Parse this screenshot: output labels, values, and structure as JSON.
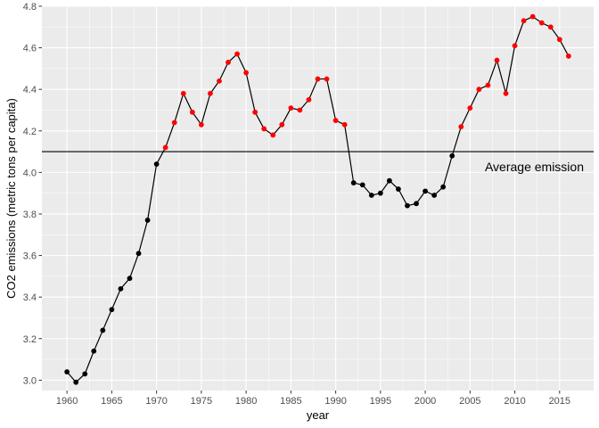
{
  "chart_data": {
    "type": "line",
    "xlabel": "year",
    "ylabel": "CO2 emissions (metric tons per capita)",
    "xlim": [
      1957.2,
      2018.8
    ],
    "ylim": [
      2.95,
      4.8
    ],
    "x_ticks": [
      1960,
      1965,
      1970,
      1975,
      1980,
      1985,
      1990,
      1995,
      2000,
      2005,
      2010,
      2015
    ],
    "x_tick_labels": [
      "1960",
      "1965",
      "1970",
      "1975",
      "1980",
      "1985",
      "1990",
      "1995",
      "2000",
      "2005",
      "2010",
      "2015"
    ],
    "y_ticks": [
      3.0,
      3.2,
      3.4,
      3.6,
      3.8,
      4.0,
      4.2,
      4.4,
      4.6,
      4.8
    ],
    "y_tick_labels": [
      "3.0",
      "3.2",
      "3.4",
      "3.6",
      "3.8",
      "4.0",
      "4.2",
      "4.4",
      "4.6",
      "4.8"
    ],
    "grid": true,
    "background_color": "#ebebeb",
    "grid_color": "#ffffff",
    "above_average_color": "#ff0000",
    "below_average_color": "#000000",
    "average_line": {
      "value": 4.1,
      "label": "Average emission"
    },
    "x": [
      1960,
      1961,
      1962,
      1963,
      1964,
      1965,
      1966,
      1967,
      1968,
      1969,
      1970,
      1971,
      1972,
      1973,
      1974,
      1975,
      1976,
      1977,
      1978,
      1979,
      1980,
      1981,
      1982,
      1983,
      1984,
      1985,
      1986,
      1987,
      1988,
      1989,
      1990,
      1991,
      1992,
      1993,
      1994,
      1995,
      1996,
      1997,
      1998,
      1999,
      2000,
      2001,
      2002,
      2003,
      2004,
      2005,
      2006,
      2007,
      2008,
      2009,
      2010,
      2011,
      2012,
      2013,
      2014,
      2015,
      2016
    ],
    "y": [
      3.04,
      2.99,
      3.03,
      3.14,
      3.24,
      3.34,
      3.44,
      3.49,
      3.61,
      3.77,
      4.04,
      4.12,
      4.24,
      4.38,
      4.29,
      4.23,
      4.38,
      4.44,
      4.53,
      4.57,
      4.48,
      4.29,
      4.21,
      4.18,
      4.23,
      4.31,
      4.3,
      4.35,
      4.45,
      4.45,
      4.25,
      4.23,
      3.95,
      3.94,
      3.89,
      3.9,
      3.96,
      3.92,
      3.84,
      3.85,
      3.91,
      3.89,
      3.93,
      4.08,
      4.22,
      4.31,
      4.4,
      4.42,
      4.54,
      4.38,
      4.61,
      4.73,
      4.75,
      4.72,
      4.7,
      4.64,
      4.56
    ]
  }
}
